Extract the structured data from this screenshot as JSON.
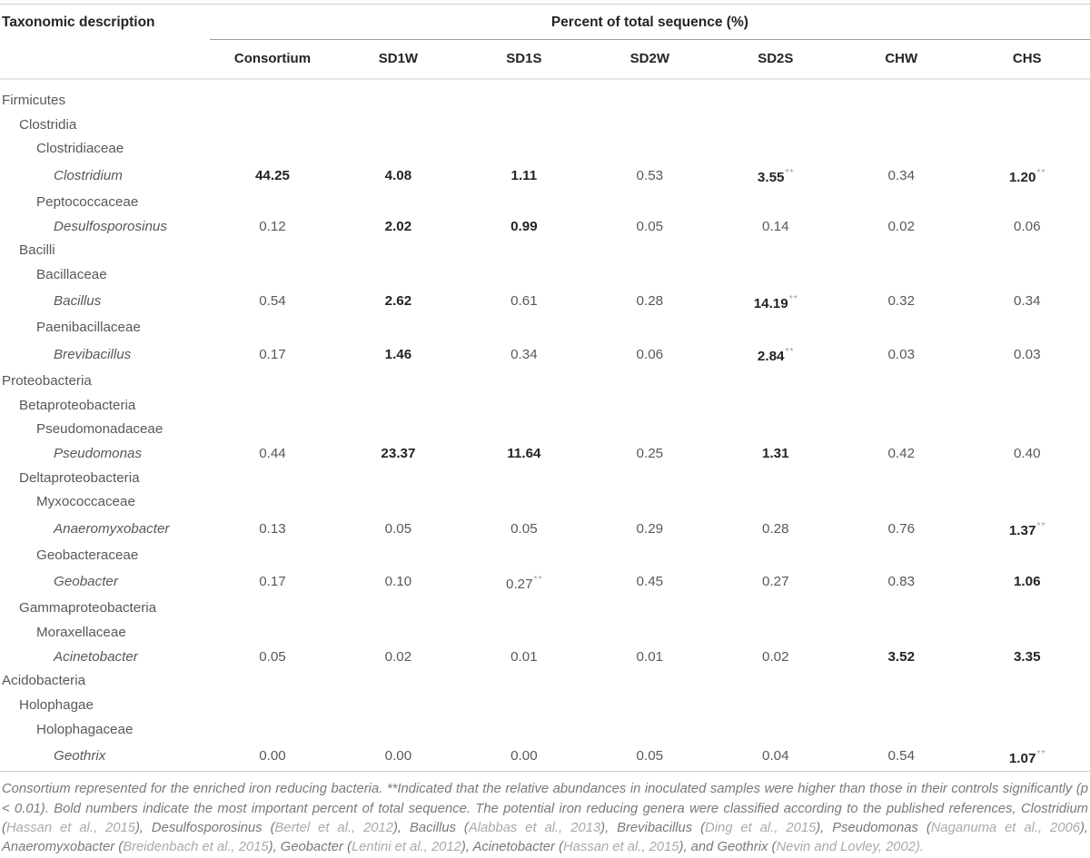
{
  "table": {
    "title_col": "Taxonomic description",
    "span_header": "Percent of total sequence (%)",
    "columns": [
      "Consortium",
      "SD1W",
      "SD1S",
      "SD2W",
      "SD2S",
      "CHW",
      "CHS"
    ],
    "rows": [
      {
        "label": "Firmicutes",
        "level": 0,
        "italic": false,
        "values": null
      },
      {
        "label": "Clostridia",
        "level": 1,
        "italic": false,
        "values": null
      },
      {
        "label": "Clostridiaceae",
        "level": 2,
        "italic": false,
        "values": null
      },
      {
        "label": "Clostridium",
        "level": 3,
        "italic": true,
        "values": [
          {
            "v": "44.25",
            "bold": true
          },
          {
            "v": "4.08",
            "bold": true
          },
          {
            "v": "1.11",
            "bold": true
          },
          {
            "v": "0.53",
            "bold": false
          },
          {
            "v": "3.55",
            "bold": true,
            "sig": "**"
          },
          {
            "v": "0.34",
            "bold": false
          },
          {
            "v": "1.20",
            "bold": true,
            "sig": "**"
          }
        ]
      },
      {
        "label": "Peptococcaceae",
        "level": 2,
        "italic": false,
        "values": null
      },
      {
        "label": "Desulfosporosinus",
        "level": 3,
        "italic": true,
        "values": [
          {
            "v": "0.12",
            "bold": false
          },
          {
            "v": "2.02",
            "bold": true
          },
          {
            "v": "0.99",
            "bold": true
          },
          {
            "v": "0.05",
            "bold": false
          },
          {
            "v": "0.14",
            "bold": false
          },
          {
            "v": "0.02",
            "bold": false
          },
          {
            "v": "0.06",
            "bold": false
          }
        ]
      },
      {
        "label": "Bacilli",
        "level": 1,
        "italic": false,
        "values": null
      },
      {
        "label": "Bacillaceae",
        "level": 2,
        "italic": false,
        "values": null
      },
      {
        "label": "Bacillus",
        "level": 3,
        "italic": true,
        "values": [
          {
            "v": "0.54",
            "bold": false
          },
          {
            "v": "2.62",
            "bold": true
          },
          {
            "v": "0.61",
            "bold": false
          },
          {
            "v": "0.28",
            "bold": false
          },
          {
            "v": "14.19",
            "bold": true,
            "sig": "**"
          },
          {
            "v": "0.32",
            "bold": false
          },
          {
            "v": "0.34",
            "bold": false
          }
        ]
      },
      {
        "label": "Paenibacillaceae",
        "level": 2,
        "italic": false,
        "values": null
      },
      {
        "label": "Brevibacillus",
        "level": 3,
        "italic": true,
        "values": [
          {
            "v": "0.17",
            "bold": false
          },
          {
            "v": "1.46",
            "bold": true
          },
          {
            "v": "0.34",
            "bold": false
          },
          {
            "v": "0.06",
            "bold": false
          },
          {
            "v": "2.84",
            "bold": true,
            "sig": "**"
          },
          {
            "v": "0.03",
            "bold": false
          },
          {
            "v": "0.03",
            "bold": false
          }
        ]
      },
      {
        "label": "Proteobacteria",
        "level": 0,
        "italic": false,
        "values": null
      },
      {
        "label": "Betaproteobacteria",
        "level": 1,
        "italic": false,
        "values": null
      },
      {
        "label": "Pseudomonadaceae",
        "level": 2,
        "italic": false,
        "values": null
      },
      {
        "label": "Pseudomonas",
        "level": 3,
        "italic": true,
        "values": [
          {
            "v": "0.44",
            "bold": false
          },
          {
            "v": "23.37",
            "bold": true
          },
          {
            "v": "11.64",
            "bold": true
          },
          {
            "v": "0.25",
            "bold": false
          },
          {
            "v": "1.31",
            "bold": true
          },
          {
            "v": "0.42",
            "bold": false
          },
          {
            "v": "0.40",
            "bold": false
          }
        ]
      },
      {
        "label": "Deltaproteobacteria",
        "level": 1,
        "italic": false,
        "values": null
      },
      {
        "label": "Myxococcaceae",
        "level": 2,
        "italic": false,
        "values": null
      },
      {
        "label": "Anaeromyxobacter",
        "level": 3,
        "italic": true,
        "values": [
          {
            "v": "0.13",
            "bold": false
          },
          {
            "v": "0.05",
            "bold": false
          },
          {
            "v": "0.05",
            "bold": false
          },
          {
            "v": "0.29",
            "bold": false
          },
          {
            "v": "0.28",
            "bold": false
          },
          {
            "v": "0.76",
            "bold": false
          },
          {
            "v": "1.37",
            "bold": true,
            "sig": "**"
          }
        ]
      },
      {
        "label": "Geobacteraceae",
        "level": 2,
        "italic": false,
        "values": null
      },
      {
        "label": "Geobacter",
        "level": 3,
        "italic": true,
        "values": [
          {
            "v": "0.17",
            "bold": false
          },
          {
            "v": "0.10",
            "bold": false
          },
          {
            "v": "0.27",
            "bold": false,
            "sig": "**"
          },
          {
            "v": "0.45",
            "bold": false
          },
          {
            "v": "0.27",
            "bold": false
          },
          {
            "v": "0.83",
            "bold": false
          },
          {
            "v": "1.06",
            "bold": true
          }
        ]
      },
      {
        "label": "Gammaproteobacteria",
        "level": 1,
        "italic": false,
        "values": null
      },
      {
        "label": "Moraxellaceae",
        "level": 2,
        "italic": false,
        "values": null
      },
      {
        "label": "Acinetobacter",
        "level": 3,
        "italic": true,
        "values": [
          {
            "v": "0.05",
            "bold": false
          },
          {
            "v": "0.02",
            "bold": false
          },
          {
            "v": "0.01",
            "bold": false
          },
          {
            "v": "0.01",
            "bold": false
          },
          {
            "v": "0.02",
            "bold": false
          },
          {
            "v": "3.52",
            "bold": true
          },
          {
            "v": "3.35",
            "bold": true
          }
        ]
      },
      {
        "label": "Acidobacteria",
        "level": 0,
        "italic": false,
        "values": null
      },
      {
        "label": "Holophagae",
        "level": 1,
        "italic": false,
        "values": null
      },
      {
        "label": "Holophagaceae",
        "level": 2,
        "italic": false,
        "values": null
      },
      {
        "label": "Geothrix",
        "level": 3,
        "italic": true,
        "values": [
          {
            "v": "0.00",
            "bold": false
          },
          {
            "v": "0.00",
            "bold": false
          },
          {
            "v": "0.00",
            "bold": false
          },
          {
            "v": "0.05",
            "bold": false
          },
          {
            "v": "0.04",
            "bold": false
          },
          {
            "v": "0.54",
            "bold": false
          },
          {
            "v": "1.07",
            "bold": true,
            "sig": "**"
          }
        ]
      }
    ]
  },
  "footnote": {
    "segments": [
      {
        "style": "body",
        "text": "Consortium represented for the enriched iron reducing bacteria. **Indicated that the relative abundances in inoculated samples were higher than those in their controls significantly (p < 0.01). Bold numbers indicate the most important percent of total sequence. The potential iron reducing genera were classified according to the published references, Clostridium ("
      },
      {
        "style": "cite",
        "text": "Hassan et al., 2015"
      },
      {
        "style": "body",
        "text": "), Desulfosporosinus ("
      },
      {
        "style": "cite",
        "text": "Bertel et al., 2012"
      },
      {
        "style": "body",
        "text": "), Bacillus ("
      },
      {
        "style": "cite",
        "text": "Alabbas et al., 2013"
      },
      {
        "style": "body",
        "text": "), Brevibacillus ("
      },
      {
        "style": "cite",
        "text": "Ding et al., 2015"
      },
      {
        "style": "body",
        "text": "), Pseudomonas ("
      },
      {
        "style": "cite",
        "text": "Naganuma et al., 2006"
      },
      {
        "style": "body",
        "text": "), Anaeromyxobacter ("
      },
      {
        "style": "cite",
        "text": "Breidenbach et al., 2015"
      },
      {
        "style": "body",
        "text": "), Geobacter ("
      },
      {
        "style": "cite",
        "text": "Lentini et al., 2012"
      },
      {
        "style": "body",
        "text": "), Acinetobacter ("
      },
      {
        "style": "cite",
        "text": "Hassan et al., 2015"
      },
      {
        "style": "body",
        "text": "), and Geothrix ("
      },
      {
        "style": "cite",
        "text": "Nevin and Lovley, 2002)."
      }
    ]
  },
  "colors": {
    "text_primary": "#232427",
    "text_secondary": "#56585b",
    "significance_marker": "#9b9da0",
    "footnote_text": "#77797c",
    "citation": "#a8aaad",
    "rule_light": "#cccdce",
    "rule_medium": "#9b9da0",
    "rule_header": "#e4e5e6"
  }
}
